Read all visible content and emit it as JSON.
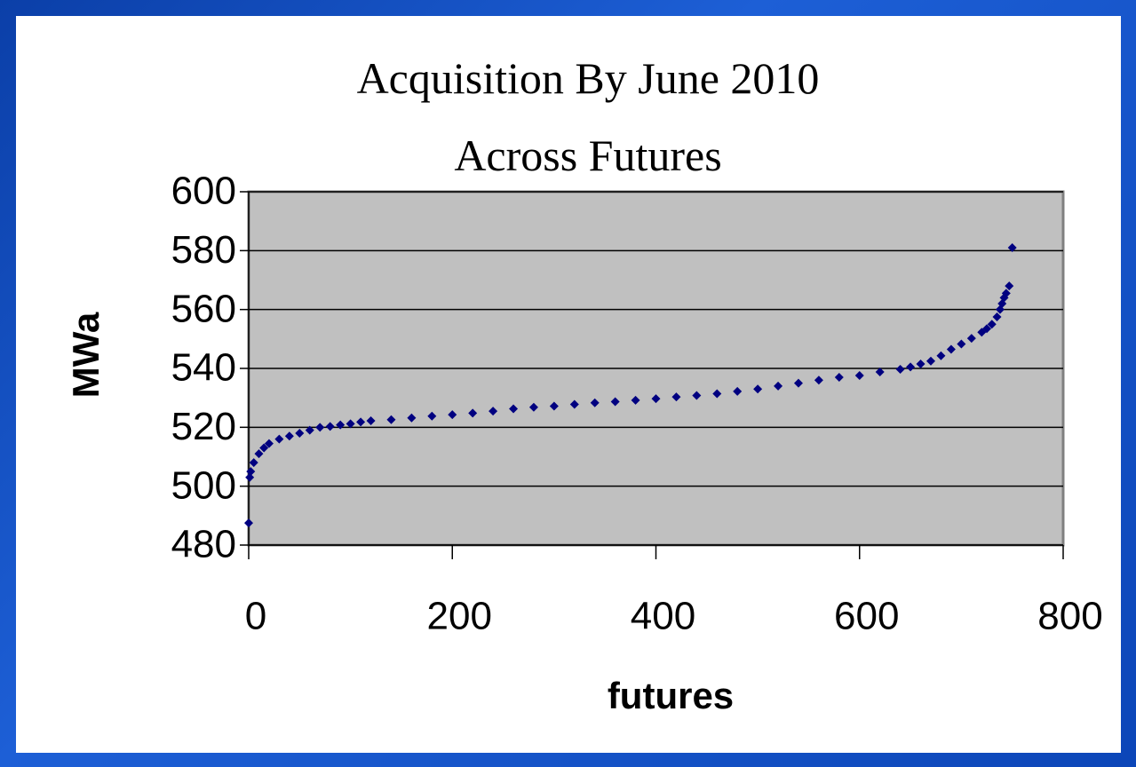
{
  "chart_data": {
    "type": "scatter",
    "title": "Acquisition By June 2010",
    "subtitle": "Across Futures",
    "x_label": "futures",
    "y_label": "MWa",
    "color": "#000080",
    "grid": true,
    "xlim": [
      0,
      800
    ],
    "xticks": [
      0,
      200,
      400,
      600,
      800
    ],
    "ylim": [
      480,
      600
    ],
    "yticks": [
      480,
      500,
      520,
      540,
      560,
      580,
      600
    ],
    "x": [
      0,
      1,
      2,
      5,
      10,
      15,
      20,
      30,
      40,
      50,
      60,
      70,
      80,
      90,
      100,
      110,
      120,
      140,
      160,
      180,
      200,
      220,
      240,
      260,
      280,
      300,
      320,
      340,
      360,
      380,
      400,
      420,
      440,
      460,
      480,
      500,
      520,
      540,
      560,
      580,
      600,
      620,
      640,
      650,
      660,
      670,
      680,
      690,
      700,
      710,
      720,
      725,
      730,
      735,
      738,
      740,
      742,
      744,
      747,
      750
    ],
    "values": [
      487.5,
      503,
      505,
      508,
      511,
      513,
      514.5,
      516,
      517,
      518,
      519,
      520,
      520.3,
      520.8,
      521.2,
      521.8,
      522.2,
      522.6,
      523.2,
      523.8,
      524.3,
      524.8,
      525.5,
      526.3,
      526.8,
      527.2,
      527.8,
      528.3,
      528.7,
      529.2,
      529.7,
      530.3,
      530.8,
      531.4,
      532.2,
      533,
      534,
      535,
      536,
      537,
      537.6,
      538.8,
      539.7,
      540.5,
      541.5,
      542.5,
      544.3,
      546.5,
      548.3,
      550.2,
      552.3,
      553.5,
      555,
      557.5,
      560,
      562,
      564,
      565.5,
      568,
      581
    ]
  }
}
